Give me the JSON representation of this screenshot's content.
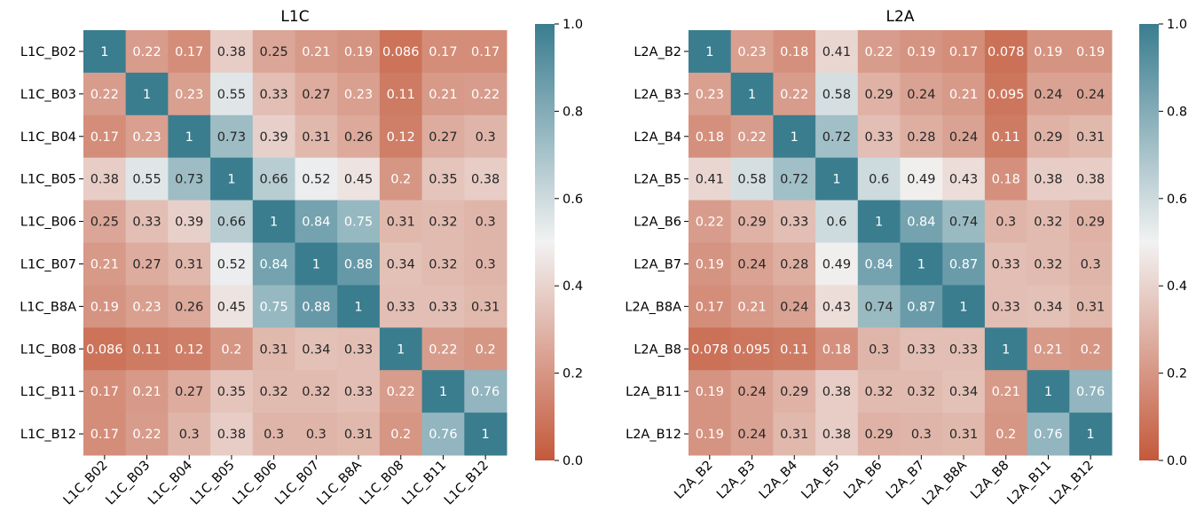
{
  "chart_data": [
    {
      "type": "heatmap",
      "title": "L1C",
      "labels": [
        "L1C_B02",
        "L1C_B03",
        "L1C_B04",
        "L1C_B05",
        "L1C_B06",
        "L1C_B07",
        "L1C_B8A",
        "L1C_B08",
        "L1C_B11",
        "L1C_B12"
      ],
      "values": [
        [
          1,
          0.22,
          0.17,
          0.38,
          0.25,
          0.21,
          0.19,
          0.086,
          0.17,
          0.17
        ],
        [
          0.22,
          1,
          0.23,
          0.55,
          0.33,
          0.27,
          0.23,
          0.11,
          0.21,
          0.22
        ],
        [
          0.17,
          0.23,
          1,
          0.73,
          0.39,
          0.31,
          0.26,
          0.12,
          0.27,
          0.3
        ],
        [
          0.38,
          0.55,
          0.73,
          1,
          0.66,
          0.52,
          0.45,
          0.2,
          0.35,
          0.38
        ],
        [
          0.25,
          0.33,
          0.39,
          0.66,
          1,
          0.84,
          0.75,
          0.31,
          0.32,
          0.3
        ],
        [
          0.21,
          0.27,
          0.31,
          0.52,
          0.84,
          1,
          0.88,
          0.34,
          0.32,
          0.3
        ],
        [
          0.19,
          0.23,
          0.26,
          0.45,
          0.75,
          0.88,
          1,
          0.33,
          0.33,
          0.31
        ],
        [
          0.086,
          0.11,
          0.12,
          0.2,
          0.31,
          0.34,
          0.33,
          1,
          0.22,
          0.2
        ],
        [
          0.17,
          0.21,
          0.27,
          0.35,
          0.32,
          0.32,
          0.33,
          0.22,
          1,
          0.76
        ],
        [
          0.17,
          0.22,
          0.3,
          0.38,
          0.3,
          0.3,
          0.31,
          0.2,
          0.76,
          1
        ]
      ],
      "vmin": 0,
      "vmax": 1,
      "colorbar_ticks": [
        "0.0",
        "0.2",
        "0.4",
        "0.6",
        "0.8",
        "1.0"
      ],
      "colormap": [
        "#c4593b",
        "#f2f2f2",
        "#3a7d8f"
      ]
    },
    {
      "type": "heatmap",
      "title": "L2A",
      "labels": [
        "L2A_B2",
        "L2A_B3",
        "L2A_B4",
        "L2A_B5",
        "L2A_B6",
        "L2A_B7",
        "L2A_B8A",
        "L2A_B8",
        "L2A_B11",
        "L2A_B12"
      ],
      "values": [
        [
          1,
          0.23,
          0.18,
          0.41,
          0.22,
          0.19,
          0.17,
          0.078,
          0.19,
          0.19
        ],
        [
          0.23,
          1,
          0.22,
          0.58,
          0.29,
          0.24,
          0.21,
          0.095,
          0.24,
          0.24
        ],
        [
          0.18,
          0.22,
          1,
          0.72,
          0.33,
          0.28,
          0.24,
          0.11,
          0.29,
          0.31
        ],
        [
          0.41,
          0.58,
          0.72,
          1,
          0.6,
          0.49,
          0.43,
          0.18,
          0.38,
          0.38
        ],
        [
          0.22,
          0.29,
          0.33,
          0.6,
          1,
          0.84,
          0.74,
          0.3,
          0.32,
          0.29
        ],
        [
          0.19,
          0.24,
          0.28,
          0.49,
          0.84,
          1,
          0.87,
          0.33,
          0.32,
          0.3
        ],
        [
          0.17,
          0.21,
          0.24,
          0.43,
          0.74,
          0.87,
          1,
          0.33,
          0.34,
          0.31
        ],
        [
          0.078,
          0.095,
          0.11,
          0.18,
          0.3,
          0.33,
          0.33,
          1,
          0.21,
          0.2
        ],
        [
          0.19,
          0.24,
          0.29,
          0.38,
          0.32,
          0.32,
          0.34,
          0.21,
          1,
          0.76
        ],
        [
          0.19,
          0.24,
          0.31,
          0.38,
          0.29,
          0.3,
          0.31,
          0.2,
          0.76,
          1
        ]
      ],
      "vmin": 0,
      "vmax": 1,
      "colorbar_ticks": [
        "0.0",
        "0.2",
        "0.4",
        "0.6",
        "0.8",
        "1.0"
      ],
      "colormap": [
        "#c4593b",
        "#f2f2f2",
        "#3a7d8f"
      ]
    }
  ]
}
